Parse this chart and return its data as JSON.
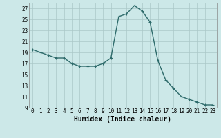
{
  "x": [
    0,
    1,
    2,
    3,
    4,
    5,
    6,
    7,
    8,
    9,
    10,
    11,
    12,
    13,
    14,
    15,
    16,
    17,
    18,
    19,
    20,
    21,
    22,
    23
  ],
  "y": [
    19.5,
    19.0,
    18.5,
    18.0,
    18.0,
    17.0,
    16.5,
    16.5,
    16.5,
    17.0,
    18.0,
    25.5,
    26.0,
    27.5,
    26.5,
    24.5,
    17.5,
    14.0,
    12.5,
    11.0,
    10.5,
    10.0,
    9.5,
    9.5
  ],
  "line_color": "#2e6b6b",
  "marker": "+",
  "marker_size": 3,
  "bg_color": "#cce8e8",
  "grid_color": "#aac8c8",
  "xlabel": "Humidex (Indice chaleur)",
  "ylim": [
    9,
    28
  ],
  "xlim": [
    -0.5,
    23.5
  ],
  "yticks": [
    9,
    11,
    13,
    15,
    17,
    19,
    21,
    23,
    25,
    27
  ],
  "xticks": [
    0,
    1,
    2,
    3,
    4,
    5,
    6,
    7,
    8,
    9,
    10,
    11,
    12,
    13,
    14,
    15,
    16,
    17,
    18,
    19,
    20,
    21,
    22,
    23
  ],
  "tick_fontsize": 5.5,
  "xlabel_fontsize": 7.0,
  "line_width": 1.0,
  "marker_edge_width": 0.8
}
